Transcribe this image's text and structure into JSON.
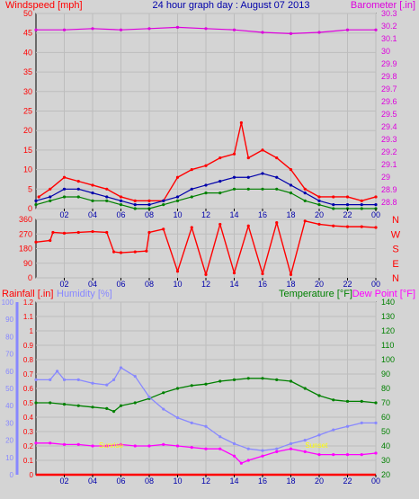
{
  "chart_data": [
    {
      "type": "line",
      "title": "24 hour graph day : August 07 2013",
      "left_axis_label": "Windspeed [mph]",
      "right_axis_label": "Barometer [.in]",
      "x_ticks": [
        "02",
        "04",
        "06",
        "08",
        "10",
        "12",
        "14",
        "16",
        "18",
        "20",
        "22",
        "00"
      ],
      "y_left_ticks": [
        0,
        5,
        10,
        15,
        20,
        25,
        30,
        35,
        40,
        45,
        50
      ],
      "y_left_range": [
        0,
        50
      ],
      "y_right_ticks": [
        "28.8",
        "28.9",
        "29",
        "29.1",
        "29.2",
        "29.3",
        "29.4",
        "29.5",
        "29.6",
        "29.7",
        "29.8",
        "29.9",
        "30",
        "30.1",
        "30.2",
        "30.3"
      ],
      "y_right_range": [
        28.75,
        30.3
      ],
      "x_range_hours": [
        0,
        24
      ],
      "series": [
        {
          "color": "#ff0000",
          "axis": "left",
          "description": "gust",
          "x": [
            0.2,
            1,
            2,
            3,
            4,
            5,
            6,
            7,
            8,
            9,
            10,
            11,
            12,
            13,
            14,
            14.5,
            15,
            16,
            17,
            18,
            19,
            20,
            21,
            22,
            23,
            24
          ],
          "values": [
            3,
            5,
            8,
            7,
            6,
            5,
            3,
            2,
            2,
            2,
            8,
            10,
            11,
            13,
            14,
            22,
            13,
            15,
            13,
            10,
            5,
            3,
            3,
            3,
            2,
            3
          ]
        },
        {
          "color": "#0000aa",
          "axis": "left",
          "description": "average speed",
          "x": [
            0,
            1,
            2,
            3,
            4,
            5,
            6,
            7,
            8,
            9,
            10,
            11,
            12,
            13,
            14,
            15,
            16,
            17,
            18,
            19,
            20,
            21,
            22,
            23,
            24
          ],
          "values": [
            2,
            3,
            5,
            5,
            4,
            3,
            2,
            1,
            1,
            2,
            3,
            5,
            6,
            7,
            8,
            8,
            9,
            8,
            6,
            4,
            2,
            1,
            1,
            1,
            1
          ]
        },
        {
          "color": "#008000",
          "axis": "left",
          "description": "lull",
          "x": [
            0,
            1,
            2,
            3,
            4,
            5,
            6,
            7,
            8,
            9,
            10,
            11,
            12,
            13,
            14,
            15,
            16,
            17,
            18,
            19,
            20,
            21,
            22,
            23,
            24
          ],
          "values": [
            1,
            2,
            3,
            3,
            2,
            2,
            1,
            0,
            0,
            1,
            2,
            3,
            4,
            4,
            5,
            5,
            5,
            5,
            4,
            2,
            1,
            0,
            0,
            0,
            0
          ]
        },
        {
          "color": "#dd00dd",
          "axis": "right",
          "description": "barometer",
          "x": [
            0,
            2,
            4,
            6,
            8,
            10,
            12,
            14,
            16,
            18,
            20,
            22,
            24
          ],
          "values": [
            30.17,
            30.17,
            30.18,
            30.17,
            30.18,
            30.19,
            30.18,
            30.17,
            30.15,
            30.14,
            30.15,
            30.17,
            30.17
          ]
        }
      ]
    },
    {
      "type": "scatter",
      "series_color": "#ff0000",
      "left_axis_ticks": [
        0,
        90,
        180,
        270,
        360
      ],
      "y_range": [
        0,
        360
      ],
      "right_axis_ticks": [
        "N",
        "W",
        "S",
        "E",
        "N"
      ],
      "x_ticks": [
        "02",
        "04",
        "06",
        "08",
        "10",
        "12",
        "14",
        "16",
        "18",
        "20",
        "22",
        "00"
      ],
      "x_range_hours": [
        0,
        24
      ],
      "series": [
        {
          "description": "wind direction",
          "x": [
            0,
            1,
            1.2,
            2,
            3,
            4,
            5,
            5.5,
            6,
            7,
            7.8,
            8,
            9,
            10,
            11,
            12,
            13,
            14,
            15,
            16,
            17,
            18,
            19,
            20,
            21,
            22,
            23,
            24
          ],
          "values": [
            220,
            230,
            280,
            275,
            280,
            285,
            280,
            160,
            155,
            160,
            165,
            280,
            300,
            40,
            310,
            20,
            330,
            30,
            320,
            25,
            340,
            20,
            350,
            330,
            320,
            315,
            315,
            310
          ]
        }
      ]
    },
    {
      "type": "line",
      "left_outer_label": "Rainfall [.in]",
      "left_inner_label": "Humidity [%]",
      "right_label_temperature": "Temperature [°F]",
      "right_label_dewpoint": "Dew Point [°F]",
      "y_rain_ticks": [
        "0",
        "0.1",
        "0.2",
        "0.3",
        "0.4",
        "0.5",
        "0.6",
        "0.7",
        "0.8",
        "0.9",
        "1",
        "1.1",
        "1.2"
      ],
      "y_rain_range": [
        0,
        1.2
      ],
      "y_humidity_ticks": [
        0,
        10,
        20,
        30,
        40,
        50,
        60,
        70,
        80,
        90,
        100
      ],
      "y_humidity_range": [
        0,
        100
      ],
      "y_temp_ticks": [
        20,
        30,
        40,
        50,
        60,
        70,
        80,
        90,
        100,
        110,
        120,
        130,
        140
      ],
      "y_temp_range": [
        20,
        140
      ],
      "x_ticks": [
        "02",
        "04",
        "06",
        "08",
        "10",
        "12",
        "14",
        "16",
        "18",
        "20",
        "22",
        "00"
      ],
      "x_range_hours": [
        0,
        24
      ],
      "series": [
        {
          "color": "#008000",
          "axis": "temperature",
          "description": "temperature",
          "x": [
            0,
            1,
            2,
            3,
            4,
            5,
            5.5,
            6,
            7,
            8,
            9,
            10,
            11,
            12,
            13,
            14,
            15,
            16,
            17,
            18,
            19,
            20,
            21,
            22,
            23,
            24
          ],
          "values": [
            70,
            70,
            69,
            68,
            67,
            66,
            64,
            68,
            70,
            73,
            77,
            80,
            82,
            83,
            85,
            86,
            87,
            87,
            86,
            85,
            80,
            75,
            72,
            71,
            71,
            70
          ]
        },
        {
          "color": "#8888ff",
          "axis": "humidity",
          "description": "humidity",
          "x": [
            0,
            1,
            1.5,
            2,
            3,
            4,
            5,
            5.5,
            6,
            7,
            8,
            9,
            10,
            11,
            12,
            13,
            14,
            15,
            16,
            17,
            18,
            19,
            20,
            21,
            22,
            23,
            24
          ],
          "values": [
            55,
            55,
            60,
            55,
            55,
            53,
            52,
            55,
            62,
            57,
            45,
            38,
            33,
            30,
            28,
            22,
            18,
            15,
            14,
            15,
            18,
            20,
            23,
            26,
            28,
            30,
            30
          ]
        },
        {
          "color": "#ff00ff",
          "axis": "temperature",
          "description": "dew point",
          "x": [
            0,
            1,
            2,
            3,
            4,
            5,
            6,
            7,
            8,
            9,
            10,
            11,
            12,
            13,
            14,
            14.5,
            15,
            16,
            17,
            18,
            19,
            20,
            21,
            22,
            23,
            24
          ],
          "values": [
            42,
            42,
            41,
            41,
            40,
            40,
            41,
            40,
            40,
            41,
            40,
            39,
            38,
            38,
            33,
            28,
            30,
            33,
            36,
            38,
            36,
            34,
            34,
            34,
            34,
            35
          ]
        },
        {
          "color": "#ff0000",
          "axis": "rain",
          "description": "rainfall",
          "x": [
            0,
            24
          ],
          "values": [
            0,
            0
          ]
        }
      ],
      "annotations": [
        {
          "text": "Sunrise",
          "color": "#ffff00",
          "x_hour": 5.3
        },
        {
          "text": "Sunset",
          "color": "#ffff00",
          "x_hour": 19.8
        }
      ]
    }
  ]
}
